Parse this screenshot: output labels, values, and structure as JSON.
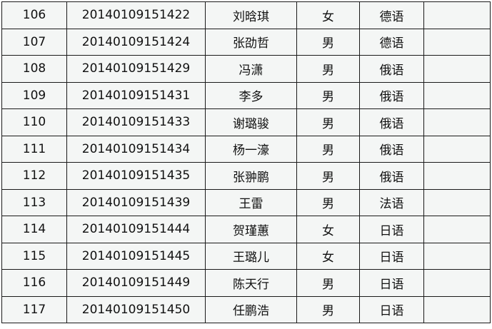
{
  "rows": [
    [
      "106",
      "20140109151422",
      "刘晗琪",
      "女",
      "德语",
      ""
    ],
    [
      "107",
      "20140109151424",
      "张劭哲",
      "男",
      "德语",
      ""
    ],
    [
      "108",
      "20140109151429",
      "冯潇",
      "男",
      "俄语",
      ""
    ],
    [
      "109",
      "20140109151431",
      "李多",
      "男",
      "俄语",
      ""
    ],
    [
      "110",
      "20140109151433",
      "谢璐骏",
      "男",
      "俄语",
      ""
    ],
    [
      "111",
      "20140109151434",
      "杨一濠",
      "男",
      "俄语",
      ""
    ],
    [
      "112",
      "20140109151435",
      "张翀鹏",
      "男",
      "俄语",
      ""
    ],
    [
      "113",
      "20140109151439",
      "王雷",
      "男",
      "法语",
      ""
    ],
    [
      "114",
      "20140109151444",
      "贺瑾蕙",
      "女",
      "日语",
      ""
    ],
    [
      "115",
      "20140109151445",
      "王璐儿",
      "女",
      "日语",
      ""
    ],
    [
      "116",
      "20140109151449",
      "陈天行",
      "男",
      "日语",
      ""
    ],
    [
      "117",
      "20140109151450",
      "任鹏浩",
      "男",
      "日语",
      ""
    ]
  ]
}
